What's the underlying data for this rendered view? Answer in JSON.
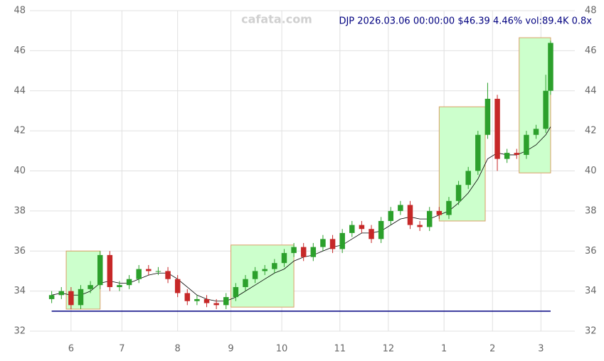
{
  "chart_data": {
    "type": "candlestick",
    "title": "DJP 2026.03.06 00:00:00 $46.39 4.46% vol:89.4K 0.8x",
    "watermark": "cafata.com",
    "x": [
      0,
      4,
      8,
      12,
      16,
      20,
      24,
      28,
      32,
      36,
      40,
      44,
      48,
      52,
      56,
      60,
      64,
      68,
      72,
      76,
      80,
      84,
      88,
      92,
      96,
      100,
      104,
      108,
      112,
      116,
      120,
      124,
      128,
      132,
      136,
      140,
      144,
      148,
      152,
      156,
      160,
      164,
      168,
      172,
      176,
      180,
      184,
      188,
      192,
      196,
      200,
      204,
      206
    ],
    "open": [
      33.6,
      33.8,
      34.0,
      33.3,
      34.1,
      34.3,
      35.8,
      34.2,
      34.3,
      34.6,
      35.1,
      35.0,
      35.0,
      34.6,
      33.9,
      33.5,
      33.6,
      33.4,
      33.3,
      33.7,
      34.2,
      34.6,
      35.0,
      35.1,
      35.4,
      35.9,
      36.2,
      35.7,
      36.2,
      36.6,
      36.1,
      36.9,
      37.3,
      37.1,
      36.6,
      37.5,
      38.0,
      38.3,
      37.3,
      37.2,
      38.0,
      37.8,
      38.5,
      39.3,
      40.0,
      41.8,
      43.6,
      40.6,
      40.9,
      40.8,
      41.8,
      42.1,
      44.0
    ],
    "high": [
      34.0,
      34.2,
      34.2,
      34.3,
      34.5,
      36.0,
      36.0,
      34.5,
      34.8,
      35.3,
      35.3,
      35.2,
      35.2,
      34.8,
      34.1,
      33.8,
      33.8,
      33.6,
      33.9,
      34.4,
      34.8,
      35.2,
      35.3,
      35.6,
      36.1,
      36.4,
      36.4,
      36.4,
      36.8,
      36.8,
      37.1,
      37.5,
      37.5,
      37.3,
      37.7,
      38.2,
      38.5,
      38.5,
      37.5,
      38.2,
      38.2,
      38.7,
      39.5,
      40.2,
      42.0,
      44.4,
      43.8,
      41.1,
      41.1,
      42.0,
      42.3,
      44.8,
      46.5
    ],
    "low": [
      33.4,
      33.6,
      33.1,
      33.1,
      33.9,
      34.1,
      34.0,
      34.0,
      34.1,
      34.4,
      34.8,
      34.8,
      34.4,
      33.7,
      33.3,
      33.3,
      33.2,
      33.1,
      33.1,
      33.5,
      34.0,
      34.4,
      34.8,
      34.9,
      35.2,
      35.7,
      35.5,
      35.5,
      36.0,
      35.9,
      35.9,
      36.7,
      36.9,
      36.4,
      36.4,
      37.3,
      37.8,
      37.1,
      37.0,
      37.0,
      37.6,
      37.6,
      38.3,
      39.1,
      39.8,
      41.6,
      40.0,
      40.4,
      40.6,
      40.6,
      41.6,
      41.9,
      43.8
    ],
    "close": [
      33.8,
      34.0,
      33.3,
      34.1,
      34.3,
      35.8,
      34.2,
      34.3,
      34.6,
      35.1,
      35.0,
      35.0,
      34.6,
      33.9,
      33.5,
      33.6,
      33.4,
      33.3,
      33.7,
      34.2,
      34.6,
      35.0,
      35.1,
      35.4,
      35.9,
      36.2,
      35.7,
      36.2,
      36.6,
      36.1,
      36.9,
      37.3,
      37.1,
      36.6,
      37.5,
      38.0,
      38.3,
      37.3,
      37.2,
      38.0,
      37.8,
      38.5,
      39.3,
      40.0,
      41.8,
      43.6,
      40.6,
      40.9,
      40.8,
      41.8,
      42.1,
      44.0,
      46.39
    ],
    "ma": [
      33.8,
      33.9,
      33.8,
      33.8,
      34.0,
      34.4,
      34.5,
      34.4,
      34.4,
      34.6,
      34.8,
      34.9,
      34.9,
      34.6,
      34.2,
      33.8,
      33.6,
      33.5,
      33.5,
      33.7,
      34.0,
      34.3,
      34.6,
      34.9,
      35.1,
      35.5,
      35.7,
      35.8,
      36.0,
      36.2,
      36.3,
      36.6,
      36.9,
      36.9,
      37.0,
      37.3,
      37.6,
      37.7,
      37.6,
      37.6,
      37.8,
      38.0,
      38.4,
      38.9,
      39.6,
      40.6,
      40.9,
      40.8,
      40.8,
      41.0,
      41.3,
      41.8,
      42.2
    ],
    "up_color": "#2ca02c",
    "down_color": "#c62828",
    "ma_color": "#000000",
    "support": 33.0,
    "support_color": "#000080",
    "zones": [
      {
        "x": [
          6,
          20
        ],
        "y": [
          33.1,
          36.0
        ]
      },
      {
        "x": [
          74,
          100
        ],
        "y": [
          33.2,
          36.3
        ]
      },
      {
        "x": [
          160,
          179
        ],
        "y": [
          37.5,
          43.2
        ]
      },
      {
        "x": [
          193,
          206
        ],
        "y": [
          39.9,
          46.65
        ]
      }
    ],
    "zone_fill": "#ccffcc",
    "zone_stroke": "#d9a066",
    "xlim": [
      -9,
      216
    ],
    "xticks": [
      {
        "value": 8,
        "label": "6"
      },
      {
        "value": 29,
        "label": "7"
      },
      {
        "value": 52,
        "label": "8"
      },
      {
        "value": 74,
        "label": "9"
      },
      {
        "value": 95,
        "label": "10"
      },
      {
        "value": 119,
        "label": "11"
      },
      {
        "value": 139,
        "label": "12"
      },
      {
        "value": 162,
        "label": "1"
      },
      {
        "value": 182,
        "label": "2"
      },
      {
        "value": 202,
        "label": "3"
      }
    ],
    "ylim": [
      32,
      48
    ],
    "yticks": [
      32,
      34,
      36,
      38,
      40,
      42,
      44,
      46,
      48
    ],
    "grid": true
  }
}
